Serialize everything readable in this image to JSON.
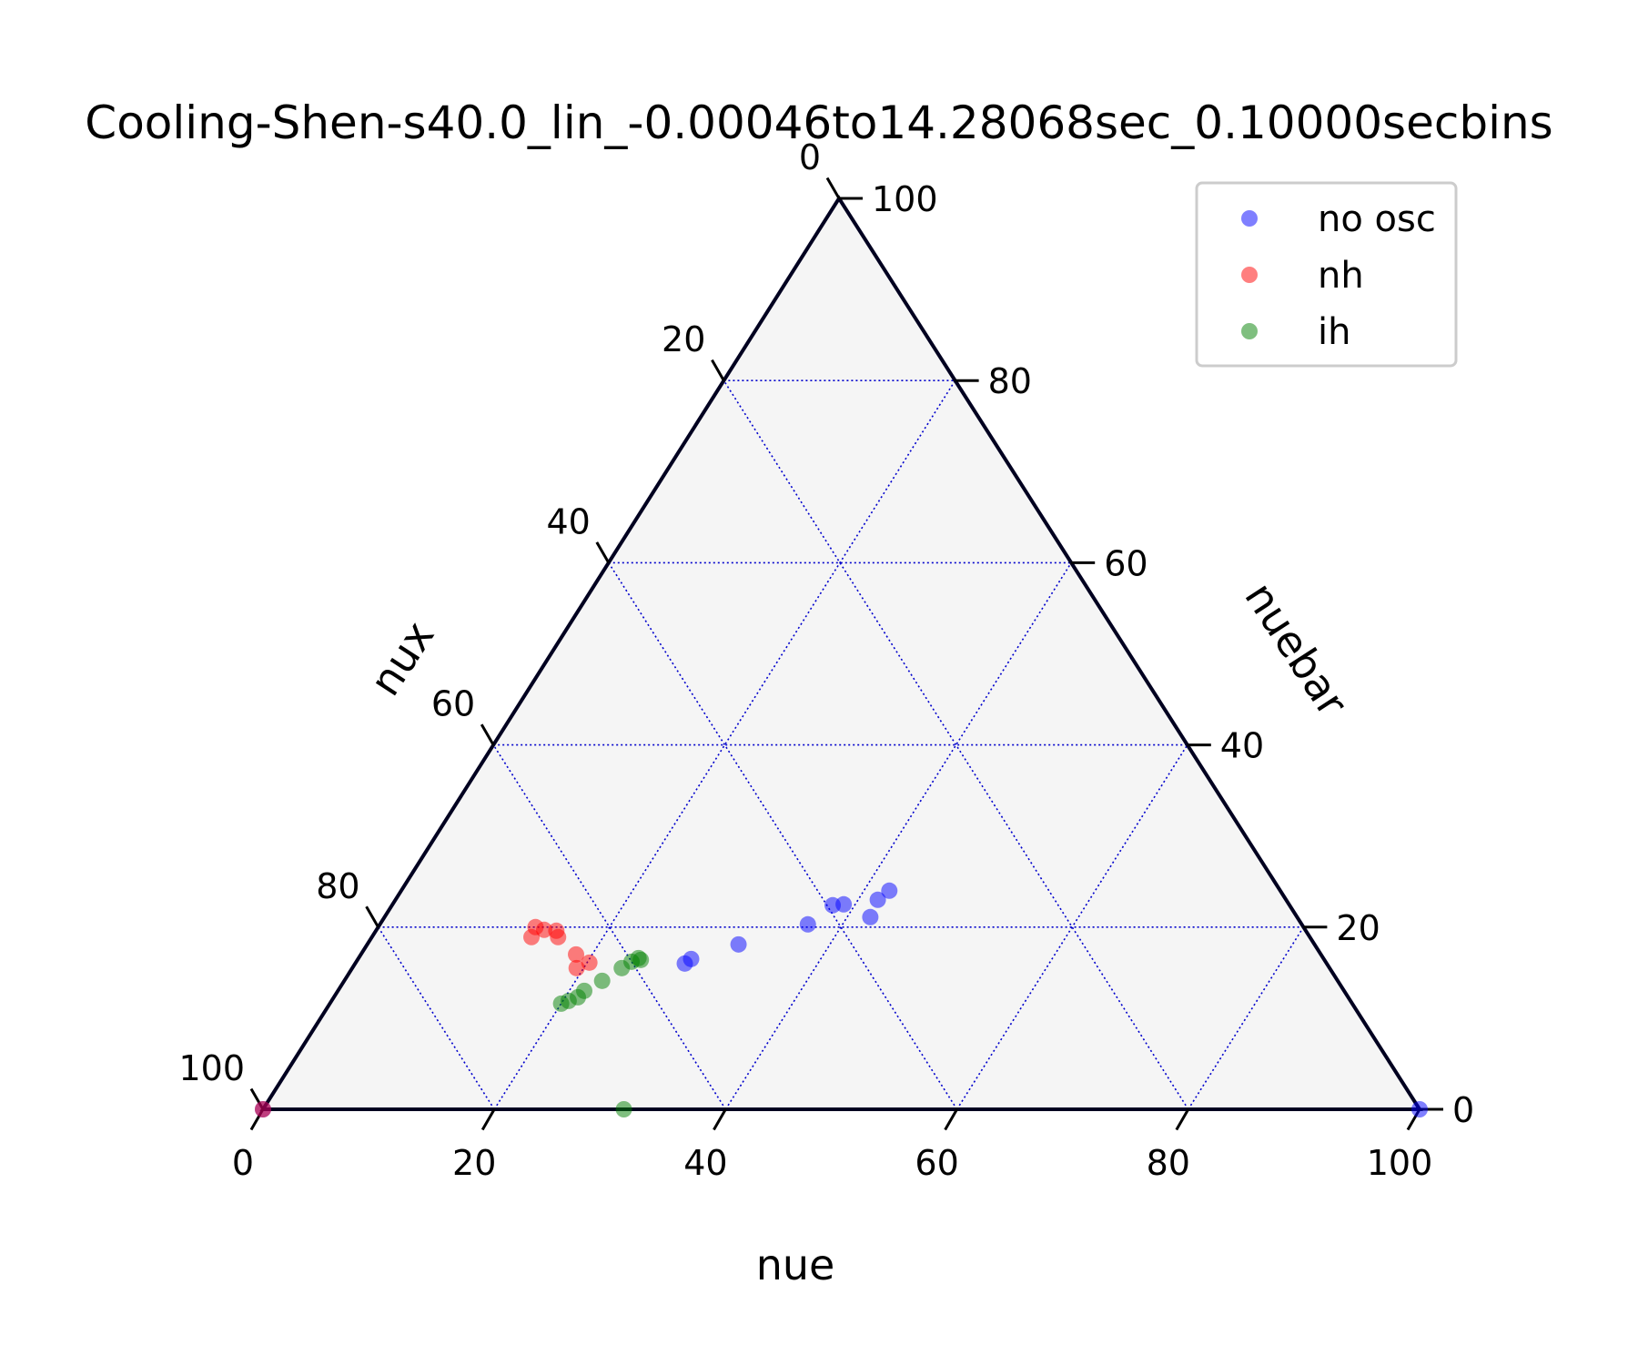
{
  "chart_data": {
    "type": "scatter",
    "subtype": "ternary",
    "title": "Cooling-Shen-s40.0_lin_-0.00046to14.28068sec_0.10000secbins",
    "axes": {
      "bottom": {
        "label": "nue",
        "ticks": [
          "0",
          "20",
          "40",
          "60",
          "80",
          "100"
        ]
      },
      "right": {
        "label": "nuebar",
        "ticks": [
          "0",
          "20",
          "40",
          "60",
          "80",
          "100"
        ]
      },
      "left": {
        "label": "nux",
        "ticks": [
          "0",
          "20",
          "40",
          "60",
          "80",
          "100"
        ]
      }
    },
    "range": [
      0,
      100
    ],
    "grid": true,
    "grid_step": 20,
    "legend_position": "top-right",
    "colors": {
      "no osc": "#0000ff",
      "nh": "#ff0000",
      "ih": "#008000",
      "background": "#f5f5f5",
      "grid": "#0000cc"
    },
    "series": [
      {
        "name": "no osc",
        "points": [
          {
            "nue": 0.0,
            "nuebar": 0.0,
            "nux": 100.0
          },
          {
            "nue": 100.0,
            "nuebar": 0.0,
            "nux": 0.0
          },
          {
            "nue": 28.8,
            "nuebar": 16.5,
            "nux": 54.7
          },
          {
            "nue": 28.5,
            "nuebar": 16.0,
            "nux": 55.5
          },
          {
            "nue": 32.1,
            "nuebar": 18.1,
            "nux": 49.8
          },
          {
            "nue": 37.0,
            "nuebar": 20.3,
            "nux": 42.7
          },
          {
            "nue": 38.1,
            "nuebar": 22.4,
            "nux": 39.5
          },
          {
            "nue": 39.0,
            "nuebar": 22.5,
            "nux": 38.5
          },
          {
            "nue": 42.0,
            "nuebar": 21.1,
            "nux": 36.9
          },
          {
            "nue": 41.7,
            "nuebar": 23.0,
            "nux": 35.3
          },
          {
            "nue": 42.2,
            "nuebar": 24.0,
            "nux": 33.8
          }
        ]
      },
      {
        "name": "nh",
        "points": [
          {
            "nue": 0.0,
            "nuebar": 0.0,
            "nux": 100.0
          },
          {
            "nue": 13.8,
            "nuebar": 18.9,
            "nux": 67.3
          },
          {
            "nue": 13.6,
            "nuebar": 20.0,
            "nux": 66.4
          },
          {
            "nue": 14.5,
            "nuebar": 19.7,
            "nux": 65.8
          },
          {
            "nue": 15.6,
            "nuebar": 19.6,
            "nux": 64.8
          },
          {
            "nue": 16.1,
            "nuebar": 18.9,
            "nux": 65.0
          },
          {
            "nue": 18.6,
            "nuebar": 17.0,
            "nux": 64.4
          },
          {
            "nue": 19.4,
            "nuebar": 15.5,
            "nux": 65.1
          },
          {
            "nue": 20.2,
            "nuebar": 16.1,
            "nux": 63.7
          }
        ]
      },
      {
        "name": "ih",
        "points": [
          {
            "nue": 31.2,
            "nuebar": 0.0,
            "nux": 68.8
          },
          {
            "nue": 20.0,
            "nuebar": 11.6,
            "nux": 68.4
          },
          {
            "nue": 20.5,
            "nuebar": 11.9,
            "nux": 67.6
          },
          {
            "nue": 21.1,
            "nuebar": 12.3,
            "nux": 66.6
          },
          {
            "nue": 21.3,
            "nuebar": 13.0,
            "nux": 65.7
          },
          {
            "nue": 22.3,
            "nuebar": 14.1,
            "nux": 63.6
          },
          {
            "nue": 23.3,
            "nuebar": 15.5,
            "nux": 61.2
          },
          {
            "nue": 23.8,
            "nuebar": 16.2,
            "nux": 60.0
          },
          {
            "nue": 24.2,
            "nuebar": 16.6,
            "nux": 59.2
          },
          {
            "nue": 24.5,
            "nuebar": 16.4,
            "nux": 59.1
          }
        ]
      }
    ]
  }
}
